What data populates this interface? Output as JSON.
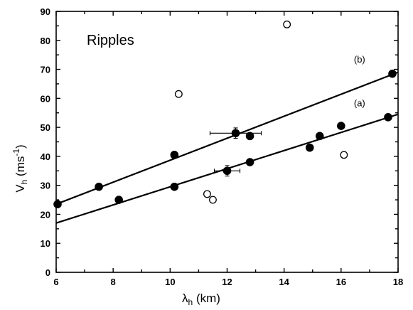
{
  "chart_data": {
    "type": "scatter",
    "panel_label": "Ripples",
    "xlabel": {
      "symbol": "λ",
      "sub": "h",
      "unit": " (km)"
    },
    "ylabel": {
      "symbol": "V",
      "sub": "h",
      "unit_open": " (ms",
      "unit_sup": "-1",
      "unit_close": ")"
    },
    "xlim": [
      6,
      18
    ],
    "ylim": [
      0,
      90
    ],
    "x_ticks": [
      6,
      8,
      10,
      12,
      14,
      16,
      18
    ],
    "y_ticks": [
      0,
      10,
      20,
      30,
      40,
      50,
      60,
      70,
      80,
      90
    ],
    "series": [
      {
        "marker": "filled-circle",
        "points": [
          {
            "x": 6.05,
            "y": 23.5
          },
          {
            "x": 7.5,
            "y": 29.5
          },
          {
            "x": 8.2,
            "y": 25
          },
          {
            "x": 10.15,
            "y": 40.5
          },
          {
            "x": 10.15,
            "y": 29.5
          },
          {
            "x": 12.0,
            "y": 35,
            "xerr": 0.45,
            "yerr": 1.8
          },
          {
            "x": 12.3,
            "y": 48,
            "xerr": 0.9,
            "yerr": 1.8
          },
          {
            "x": 12.8,
            "y": 47
          },
          {
            "x": 12.8,
            "y": 38
          },
          {
            "x": 14.9,
            "y": 43
          },
          {
            "x": 15.25,
            "y": 47
          },
          {
            "x": 16.0,
            "y": 50.5
          },
          {
            "x": 17.65,
            "y": 53.5
          },
          {
            "x": 17.8,
            "y": 68.5
          }
        ]
      },
      {
        "marker": "open-circle",
        "points": [
          {
            "x": 10.3,
            "y": 61.5
          },
          {
            "x": 11.3,
            "y": 27
          },
          {
            "x": 11.5,
            "y": 25
          },
          {
            "x": 14.1,
            "y": 85.5
          },
          {
            "x": 16.1,
            "y": 40.5
          }
        ]
      }
    ],
    "fit_lines": [
      {
        "label": "(a)",
        "x": [
          6,
          18
        ],
        "y": [
          17,
          54.5
        ],
        "label_at": [
          16.45,
          57.3
        ]
      },
      {
        "label": "(b)",
        "x": [
          6,
          18
        ],
        "y": [
          23.5,
          69
        ],
        "label_at": [
          16.45,
          72.3
        ]
      }
    ],
    "grid": false,
    "legend": "none",
    "colors": {
      "axis": "#000000",
      "marker": "#000000",
      "background": "#ffffff"
    }
  }
}
